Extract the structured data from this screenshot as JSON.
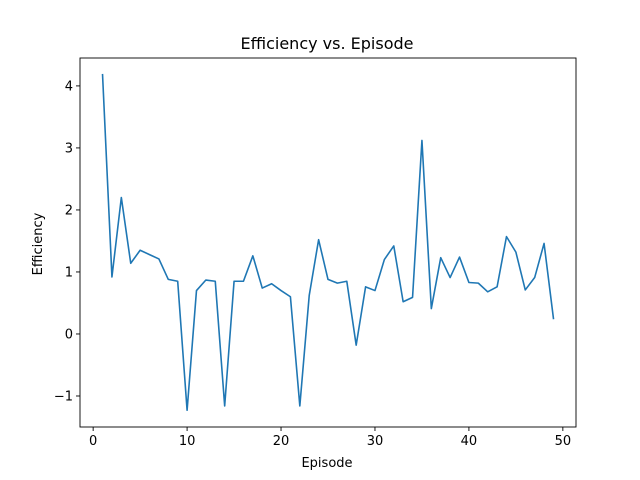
{
  "chart_data": {
    "type": "line",
    "title": "Efficiency vs. Episode",
    "xlabel": "Episode",
    "ylabel": "Efficiency",
    "xlim": [
      -1.4,
      51.4
    ],
    "ylim": [
      -1.5,
      4.45
    ],
    "xticks": [
      0,
      10,
      20,
      30,
      40,
      50
    ],
    "yticks": [
      -1,
      0,
      1,
      2,
      3,
      4
    ],
    "grid": false,
    "series": [
      {
        "color": "#1f77b4",
        "x": [
          1,
          2,
          3,
          4,
          5,
          6,
          7,
          8,
          9,
          10,
          11,
          12,
          13,
          14,
          15,
          16,
          17,
          18,
          19,
          20,
          21,
          22,
          23,
          24,
          25,
          26,
          27,
          28,
          29,
          30,
          31,
          32,
          33,
          34,
          35,
          36,
          37,
          38,
          39,
          40,
          41,
          42,
          43,
          44,
          45,
          46,
          47,
          48,
          49
        ],
        "y": [
          4.18,
          0.92,
          2.2,
          1.14,
          1.35,
          1.28,
          1.21,
          0.88,
          0.85,
          -1.23,
          0.7,
          0.87,
          0.85,
          -1.16,
          0.85,
          0.85,
          1.26,
          0.74,
          0.81,
          0.7,
          0.6,
          -1.16,
          0.62,
          1.52,
          0.88,
          0.82,
          0.85,
          -0.18,
          0.76,
          0.7,
          1.2,
          1.42,
          0.52,
          0.59,
          3.12,
          0.41,
          1.23,
          0.91,
          1.24,
          0.83,
          0.82,
          0.68,
          0.76,
          1.57,
          1.32,
          0.71,
          0.91,
          1.46,
          0.25
        ]
      }
    ]
  }
}
